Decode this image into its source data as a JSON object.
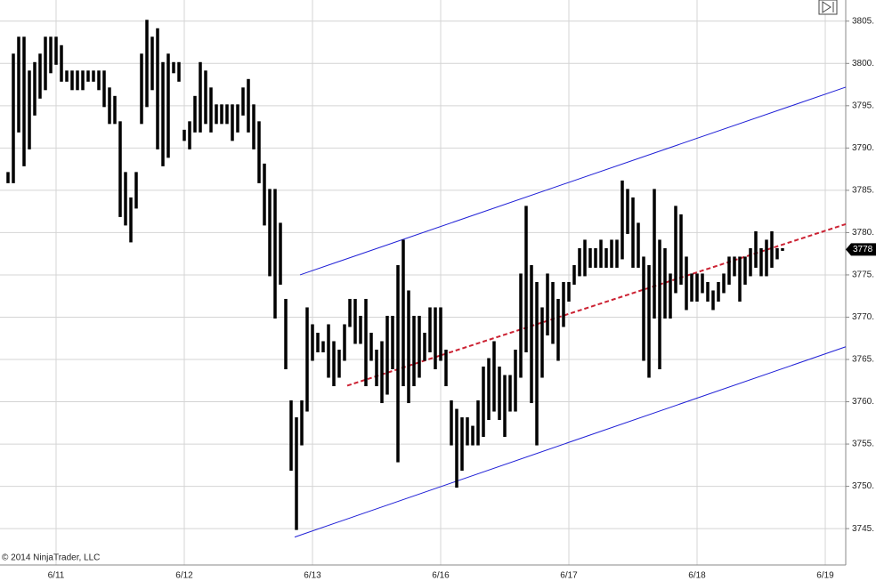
{
  "chart_data": {
    "type": "ohlc",
    "copyright": "© 2014 NinjaTrader, LLC",
    "categories": [
      null,
      null,
      null,
      null,
      null,
      null,
      null,
      null,
      null,
      "6/11",
      null,
      null,
      null,
      null,
      null,
      null,
      null,
      null,
      null,
      null,
      null,
      null,
      null,
      null,
      null,
      null,
      null,
      null,
      null,
      null,
      null,
      null,
      null,
      "6/12",
      null,
      null,
      null,
      null,
      null,
      null,
      null,
      null,
      null,
      null,
      null,
      null,
      null,
      null,
      null,
      null,
      null,
      null,
      null,
      null,
      null,
      null,
      null,
      "6/13",
      null,
      null,
      null,
      null,
      null,
      null,
      null,
      null,
      null,
      null,
      null,
      null,
      null,
      null,
      null,
      null,
      null,
      null,
      null,
      null,
      null,
      null,
      null,
      "6/16",
      null,
      null,
      null,
      null,
      null,
      null,
      null,
      null,
      null,
      null,
      null,
      null,
      null,
      null,
      null,
      null,
      null,
      null,
      null,
      null,
      null,
      null,
      null,
      "6/17",
      null,
      null,
      null,
      null,
      null,
      null,
      null,
      null,
      null,
      null,
      null,
      null,
      null,
      null,
      null,
      null,
      null,
      null,
      null,
      null,
      null,
      null,
      null,
      "6/18",
      null,
      null,
      null,
      null,
      null,
      null,
      null,
      null,
      null,
      null,
      null,
      null,
      null,
      null,
      null,
      null,
      null,
      null,
      null,
      null,
      null,
      null,
      null,
      "6/19"
    ],
    "high": [
      3787,
      3801,
      3803,
      3803,
      3799,
      3800,
      3801,
      3803,
      3803,
      3803,
      3802,
      3799,
      3799,
      3799,
      3799,
      3799,
      3799,
      3799,
      3799,
      3797,
      3796,
      3793,
      3787,
      3784,
      3787,
      3801,
      3805,
      3803,
      3804,
      3800,
      3801,
      3800,
      3800,
      3792,
      3793,
      3796,
      3800,
      3799,
      3797,
      3795,
      3795,
      3795,
      3795,
      3795,
      3797,
      3798,
      3795,
      3793,
      3788,
      3785,
      3785,
      3781,
      3772,
      3760,
      3758,
      3760,
      3771,
      3769,
      3768,
      3767,
      3769,
      3767,
      3766,
      3769,
      3772,
      3772,
      3770,
      3772,
      3768,
      3766,
      3767,
      3770,
      3770,
      3776,
      3779,
      3773,
      3770,
      3770,
      3768,
      3771,
      3771,
      3771,
      3766,
      3760,
      3759,
      3758,
      3758,
      3757,
      3760,
      3764,
      3765,
      3767,
      3764,
      3763,
      3763,
      3766,
      3775,
      3783,
      3776,
      3774,
      3771,
      3775,
      3774,
      3772,
      3774,
      3774,
      3776,
      3778,
      3779,
      3778,
      3778,
      3779,
      3778,
      3779,
      3779,
      3786,
      3785,
      3784,
      3781,
      3777,
      3776,
      3785,
      3779,
      3778,
      3775,
      3783,
      3782,
      3777,
      3775,
      3775,
      3775,
      3774,
      3773,
      3774,
      3775,
      3777,
      3777,
      3777,
      3777,
      3778,
      3780,
      3778,
      3779,
      3780,
      3778,
      3778,
      null,
      null,
      null,
      null,
      null,
      null,
      null,
      null
    ],
    "low": [
      3786,
      3786,
      3792,
      3788,
      3790,
      3794,
      3796,
      3797,
      3799,
      3800,
      3798,
      3798,
      3797,
      3797,
      3797,
      3798,
      3798,
      3797,
      3795,
      3793,
      3793,
      3782,
      3781,
      3779,
      3783,
      3793,
      3795,
      3797,
      3790,
      3788,
      3789,
      3799,
      3798,
      3791,
      3790,
      3792,
      3792,
      3793,
      3792,
      3793,
      3793,
      3793,
      3791,
      3792,
      3794,
      3792,
      3790,
      3786,
      3781,
      3775,
      3770,
      3774,
      3764,
      3752,
      3745,
      3755,
      3759,
      3765,
      3766,
      3766,
      3763,
      3762,
      3763,
      3765,
      3769,
      3767,
      3767,
      3762,
      3765,
      3762,
      3760,
      3761,
      3764,
      3753,
      3762,
      3760,
      3762,
      3763,
      3765,
      3766,
      3764,
      3765,
      3762,
      3755,
      3750,
      3752,
      3755,
      3755,
      3755,
      3756,
      3758,
      3759,
      3758,
      3756,
      3759,
      3759,
      3763,
      3766,
      3760,
      3755,
      3763,
      3768,
      3767,
      3765,
      3769,
      3772,
      3774,
      3775,
      3775,
      3776,
      3776,
      3776,
      3776,
      3776,
      3776,
      3777,
      3780,
      3776,
      3776,
      3765,
      3763,
      3770,
      3764,
      3770,
      3770,
      3773,
      3774,
      3771,
      3772,
      3772,
      3773,
      3772,
      3771,
      3772,
      3773,
      3774,
      3775,
      3772,
      3774,
      3775,
      3776,
      3775,
      3775,
      3776,
      3777,
      3778,
      null,
      null,
      null,
      null,
      null,
      null,
      null,
      null
    ],
    "color": "#000000",
    "lines": [
      {
        "color": "#1f1fd6",
        "dashed": false,
        "values": [
          3775.0,
          3797.2
        ]
      },
      {
        "color": "#1f1fd6",
        "dashed": false,
        "values": [
          3744.0,
          3766.5
        ]
      },
      {
        "color": "#cc2233",
        "dashed": true,
        "values": [
          3761.9,
          3781.0
        ]
      }
    ],
    "last_price": 3778,
    "ylim": [
      3740.7,
      3807.5
    ],
    "yticks": [
      {
        "value": 3745,
        "label": "3745."
      },
      {
        "value": 3750,
        "label": "3750."
      },
      {
        "value": 3755,
        "label": "3755."
      },
      {
        "value": 3760,
        "label": "3760."
      },
      {
        "value": 3765,
        "label": "3765."
      },
      {
        "value": 3770,
        "label": "3770."
      },
      {
        "value": 3775,
        "label": "3775."
      },
      {
        "value": 3780,
        "label": "3780."
      },
      {
        "value": 3785,
        "label": "3785."
      },
      {
        "value": 3790,
        "label": "3790."
      },
      {
        "value": 3795,
        "label": "3795."
      },
      {
        "value": 3800,
        "label": "3800."
      },
      {
        "value": 3805,
        "label": "3805."
      }
    ],
    "grid": true
  }
}
